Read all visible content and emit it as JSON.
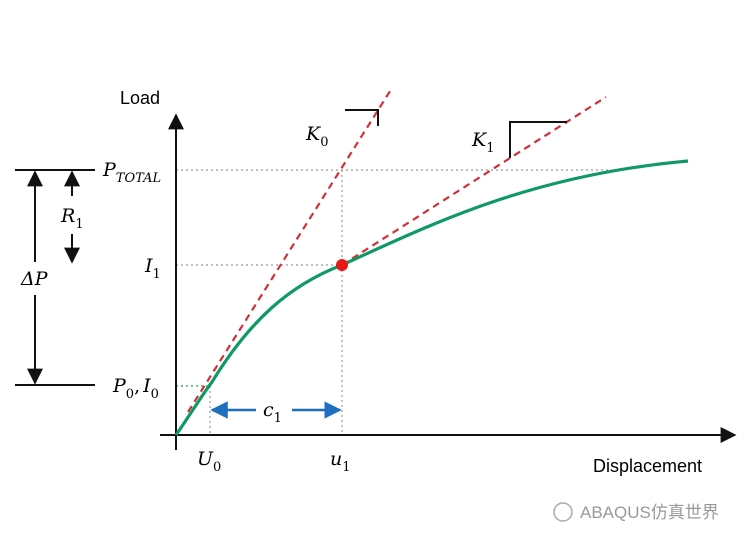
{
  "axes": {
    "y_label": "Load",
    "x_label": "Displacement"
  },
  "symbols": {
    "k0": {
      "base": "K",
      "sub": "0"
    },
    "k1": {
      "base": "K",
      "sub": "1"
    },
    "p_total": {
      "base": "P",
      "sub": "TOTAL"
    },
    "i1": {
      "base": "I",
      "sub": "1"
    },
    "p0_i0": {
      "p": {
        "base": "P",
        "sub": "0"
      },
      "separator": ",",
      "i": {
        "base": "I",
        "sub": "0"
      }
    },
    "u0": {
      "base": "U",
      "sub": "0"
    },
    "u1": {
      "base": "u",
      "sub": "1"
    },
    "c1": {
      "base": "c",
      "sub": "1"
    },
    "r1": {
      "base": "R",
      "sub": "1"
    },
    "delta_p": "ΔP"
  },
  "watermark": "ABAQUS仿真世界"
}
